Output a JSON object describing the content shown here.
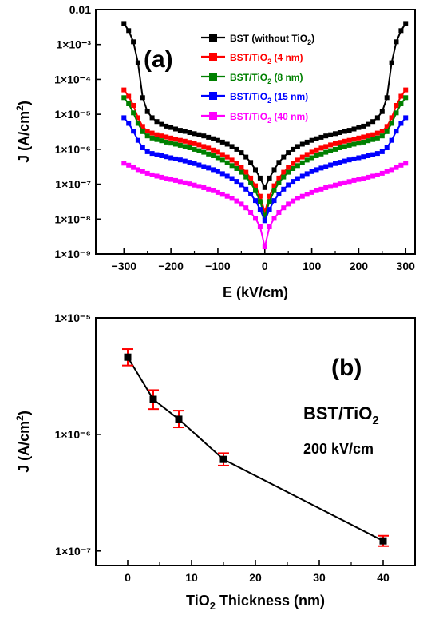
{
  "chart_data": [
    {
      "type": "line",
      "panel_label": "(a)",
      "ylog": true,
      "xlabel": "E (kV/cm)",
      "ylabel_main": "J (A/cm",
      "ylabel_sup": "2",
      "ylabel_tail": ")",
      "xlim": [
        -360,
        320
      ],
      "ylim": [
        1e-09,
        0.01
      ],
      "xticks": [
        -300,
        -200,
        -100,
        0,
        100,
        200,
        300
      ],
      "xtick_labels": [
        "−300",
        "−200",
        "−100",
        "0",
        "100",
        "200",
        "300"
      ],
      "yticks": [
        1e-09,
        1e-08,
        1e-07,
        1e-06,
        1e-05,
        0.0001,
        0.001,
        0.01
      ],
      "ytick_labels": [
        "1×10⁻⁹",
        "1×10⁻⁸",
        "1×10⁻⁷",
        "1×10⁻⁶",
        "1×10⁻⁵",
        "1×10⁻⁴",
        "1×10⁻³",
        "0.01"
      ],
      "legend_position": "top-right",
      "series": [
        {
          "name": "BST (without TiO₂)",
          "name_main": "BST (without TiO",
          "name_sub": "2",
          "name_tail": ")",
          "color": "#000000",
          "x": [
            -300,
            -290,
            -280,
            -270,
            -260,
            -250,
            -240,
            -230,
            -220,
            -210,
            -200,
            -190,
            -180,
            -170,
            -160,
            -150,
            -140,
            -130,
            -120,
            -110,
            -100,
            -90,
            -80,
            -70,
            -60,
            -50,
            -40,
            -30,
            -20,
            -10,
            0,
            10,
            20,
            30,
            40,
            50,
            60,
            70,
            80,
            90,
            100,
            110,
            120,
            130,
            140,
            150,
            160,
            170,
            180,
            190,
            200,
            210,
            220,
            230,
            240,
            250,
            260,
            270,
            280,
            290,
            300
          ],
          "y": [
            0.004,
            0.0025,
            0.0012,
            0.0003,
            3e-05,
            1.2e-05,
            8e-06,
            6.2e-06,
            5.2e-06,
            4.6e-06,
            4.2e-06,
            3.8e-06,
            3.5e-06,
            3.25e-06,
            3e-06,
            2.8e-06,
            2.6e-06,
            2.4e-06,
            2.2e-06,
            2e-06,
            1.8e-06,
            1.6e-06,
            1.4e-06,
            1.2e-06,
            1e-06,
            8e-07,
            6e-07,
            4.2e-07,
            2.6e-07,
            1.5e-07,
            8e-08,
            1.5e-07,
            2.6e-07,
            4.2e-07,
            6e-07,
            8e-07,
            1e-06,
            1.2e-06,
            1.4e-06,
            1.6e-06,
            1.8e-06,
            2e-06,
            2.2e-06,
            2.4e-06,
            2.6e-06,
            2.8e-06,
            3e-06,
            3.25e-06,
            3.5e-06,
            3.8e-06,
            4.2e-06,
            4.6e-06,
            5.2e-06,
            6.2e-06,
            8e-06,
            1.2e-05,
            3e-05,
            0.0003,
            0.0012,
            0.0025,
            0.004
          ]
        },
        {
          "name": "BST/TiO₂ (4 nm)",
          "name_main": "BST/TiO",
          "name_sub": "2",
          "name_tail": " (4 nm)",
          "color": "#ff0000",
          "x": [
            -300,
            -290,
            -280,
            -270,
            -260,
            -250,
            -240,
            -230,
            -220,
            -210,
            -200,
            -190,
            -180,
            -170,
            -160,
            -150,
            -140,
            -130,
            -120,
            -110,
            -100,
            -90,
            -80,
            -70,
            -60,
            -50,
            -40,
            -30,
            -20,
            -10,
            0,
            10,
            20,
            30,
            40,
            50,
            60,
            70,
            80,
            90,
            100,
            110,
            120,
            130,
            140,
            150,
            160,
            170,
            180,
            190,
            200,
            210,
            220,
            230,
            240,
            250,
            260,
            270,
            280,
            290,
            300
          ],
          "y": [
            5e-05,
            3.3e-05,
            1.8e-05,
            8e-06,
            4.5e-06,
            3.3e-06,
            2.9e-06,
            2.6e-06,
            2.4e-06,
            2.25e-06,
            2.1e-06,
            1.95e-06,
            1.8e-06,
            1.7e-06,
            1.58e-06,
            1.45e-06,
            1.33e-06,
            1.2e-06,
            1.08e-06,
            9.5e-07,
            8.3e-07,
            7.1e-07,
            6e-07,
            4.9e-07,
            3.9e-07,
            3e-07,
            2.2e-07,
            1.5e-07,
            9e-08,
            4.5e-08,
            1.6e-08,
            4.5e-08,
            9e-08,
            1.5e-07,
            2.2e-07,
            3e-07,
            3.9e-07,
            4.9e-07,
            6e-07,
            7.1e-07,
            8.3e-07,
            9.5e-07,
            1.08e-06,
            1.2e-06,
            1.33e-06,
            1.45e-06,
            1.58e-06,
            1.7e-06,
            1.8e-06,
            1.95e-06,
            2.1e-06,
            2.25e-06,
            2.4e-06,
            2.6e-06,
            2.9e-06,
            3.3e-06,
            4.5e-06,
            8e-06,
            1.8e-05,
            3.3e-05,
            5e-05
          ]
        },
        {
          "name": "BST/TiO₂ (8 nm)",
          "name_main": "BST/TiO",
          "name_sub": "2",
          "name_tail": " (8 nm)",
          "color": "#008000",
          "x": [
            -300,
            -290,
            -280,
            -270,
            -260,
            -250,
            -240,
            -230,
            -220,
            -210,
            -200,
            -190,
            -180,
            -170,
            -160,
            -150,
            -140,
            -130,
            -120,
            -110,
            -100,
            -90,
            -80,
            -70,
            -60,
            -50,
            -40,
            -30,
            -20,
            -10,
            0,
            10,
            20,
            30,
            40,
            50,
            60,
            70,
            80,
            90,
            100,
            110,
            120,
            130,
            140,
            150,
            160,
            170,
            180,
            190,
            200,
            210,
            220,
            230,
            240,
            250,
            260,
            270,
            280,
            290,
            300
          ],
          "y": [
            3e-05,
            2e-05,
            1.1e-05,
            5.5e-06,
            3.2e-06,
            2.4e-06,
            2.1e-06,
            1.9e-06,
            1.75e-06,
            1.6e-06,
            1.5e-06,
            1.4e-06,
            1.3e-06,
            1.2e-06,
            1.1e-06,
            1e-06,
            9.1e-07,
            8.2e-07,
            7.3e-07,
            6.5e-07,
            5.7e-07,
            4.9e-07,
            4.1e-07,
            3.4e-07,
            2.8e-07,
            2.2e-07,
            1.6e-07,
            1.1e-07,
            6.5e-08,
            3.2e-08,
            1.2e-08,
            3.2e-08,
            6.5e-08,
            1.1e-07,
            1.6e-07,
            2.2e-07,
            2.8e-07,
            3.4e-07,
            4.1e-07,
            4.9e-07,
            5.7e-07,
            6.5e-07,
            7.3e-07,
            8.2e-07,
            9.1e-07,
            1e-06,
            1.1e-06,
            1.2e-06,
            1.3e-06,
            1.4e-06,
            1.5e-06,
            1.6e-06,
            1.75e-06,
            1.9e-06,
            2.1e-06,
            2.4e-06,
            3.2e-06,
            5.5e-06,
            1.1e-05,
            2e-05,
            3e-05
          ]
        },
        {
          "name": "BST/TiO₂ (15 nm)",
          "name_main": "BST/TiO",
          "name_sub": "2",
          "name_tail": " (15 nm)",
          "color": "#0000ff",
          "x": [
            -300,
            -290,
            -280,
            -270,
            -260,
            -250,
            -240,
            -230,
            -220,
            -210,
            -200,
            -190,
            -180,
            -170,
            -160,
            -150,
            -140,
            -130,
            -120,
            -110,
            -100,
            -90,
            -80,
            -70,
            -60,
            -50,
            -40,
            -30,
            -20,
            -10,
            0,
            10,
            20,
            30,
            40,
            50,
            60,
            70,
            80,
            90,
            100,
            110,
            120,
            130,
            140,
            150,
            160,
            170,
            180,
            190,
            200,
            210,
            220,
            230,
            240,
            250,
            260,
            270,
            280,
            290,
            300
          ],
          "y": [
            8e-06,
            5.5e-06,
            3.3e-06,
            1.8e-06,
            1.1e-06,
            8.5e-07,
            7.6e-07,
            7e-07,
            6.5e-07,
            6.1e-07,
            5.7e-07,
            5.3e-07,
            4.95e-07,
            4.6e-07,
            4.25e-07,
            3.9e-07,
            3.55e-07,
            3.2e-07,
            2.9e-07,
            2.6e-07,
            2.3e-07,
            2e-07,
            1.7e-07,
            1.45e-07,
            1.2e-07,
            9.5e-08,
            7.2e-08,
            5.2e-08,
            3.4e-08,
            1.9e-08,
            9e-09,
            1.9e-08,
            3.4e-08,
            5.2e-08,
            7.2e-08,
            9.5e-08,
            1.2e-07,
            1.45e-07,
            1.7e-07,
            2e-07,
            2.3e-07,
            2.6e-07,
            2.9e-07,
            3.2e-07,
            3.55e-07,
            3.9e-07,
            4.25e-07,
            4.6e-07,
            4.95e-07,
            5.3e-07,
            5.7e-07,
            6.1e-07,
            6.5e-07,
            7e-07,
            7.6e-07,
            8.5e-07,
            1.1e-06,
            1.8e-06,
            3.3e-06,
            5.5e-06,
            8e-06
          ]
        },
        {
          "name": "BST/TiO₂ (40 nm)",
          "name_main": "BST/TiO",
          "name_sub": "2",
          "name_tail": " (40 nm)",
          "color": "#ff00ff",
          "x": [
            -300,
            -290,
            -280,
            -270,
            -260,
            -250,
            -240,
            -230,
            -220,
            -210,
            -200,
            -190,
            -180,
            -170,
            -160,
            -150,
            -140,
            -130,
            -120,
            -110,
            -100,
            -90,
            -80,
            -70,
            -60,
            -50,
            -40,
            -30,
            -20,
            -10,
            0,
            10,
            20,
            30,
            40,
            50,
            60,
            70,
            80,
            90,
            100,
            110,
            120,
            130,
            140,
            150,
            160,
            170,
            180,
            190,
            200,
            210,
            220,
            230,
            240,
            250,
            260,
            270,
            280,
            290,
            300
          ],
          "y": [
            4e-07,
            3.5e-07,
            3e-07,
            2.6e-07,
            2.3e-07,
            2.05e-07,
            1.85e-07,
            1.7e-07,
            1.58e-07,
            1.47e-07,
            1.37e-07,
            1.28e-07,
            1.19e-07,
            1.1e-07,
            1.02e-07,
            9.4e-08,
            8.6e-08,
            7.9e-08,
            7.2e-08,
            6.5e-08,
            5.8e-08,
            5.1e-08,
            4.5e-08,
            3.9e-08,
            3.3e-08,
            2.7e-08,
            2.1e-08,
            1.55e-08,
            1.05e-08,
            6e-09,
            1.6e-09,
            6e-09,
            1.05e-08,
            1.55e-08,
            2.1e-08,
            2.7e-08,
            3.3e-08,
            3.9e-08,
            4.5e-08,
            5.1e-08,
            5.8e-08,
            6.5e-08,
            7.2e-08,
            7.9e-08,
            8.6e-08,
            9.4e-08,
            1.02e-07,
            1.1e-07,
            1.19e-07,
            1.28e-07,
            1.37e-07,
            1.47e-07,
            1.58e-07,
            1.7e-07,
            1.85e-07,
            2.05e-07,
            2.3e-07,
            2.6e-07,
            3e-07,
            3.5e-07,
            4e-07
          ]
        }
      ]
    },
    {
      "type": "line",
      "panel_label": "(b)",
      "ylog": true,
      "xlabel_main": "TiO",
      "xlabel_sub": "2",
      "xlabel_tail": " Thickness (nm)",
      "ylabel_main": "J (A/cm",
      "ylabel_sup": "2",
      "ylabel_tail": ")",
      "xlim": [
        -5,
        45
      ],
      "ylim": [
        7.5e-08,
        1e-05
      ],
      "xticks": [
        0,
        10,
        20,
        30,
        40
      ],
      "xtick_labels": [
        "0",
        "10",
        "20",
        "30",
        "40"
      ],
      "yticks": [
        1e-07,
        1e-06,
        1e-05
      ],
      "ytick_labels": [
        "1×10⁻⁷",
        "1×10⁻⁶",
        "1×10⁻⁵"
      ],
      "annotation_material_main": "BST/TiO",
      "annotation_material_sub": "2",
      "annotation_field": "200 kV/cm",
      "series": [
        {
          "color": "#000000",
          "error_color": "#ff0000",
          "x": [
            0,
            4,
            8,
            15,
            40
          ],
          "y": [
            4.6e-06,
            2e-06,
            1.35e-06,
            6.1e-07,
            1.22e-07
          ],
          "y_low": [
            3.9e-06,
            1.65e-06,
            1.15e-06,
            5.4e-07,
            1.1e-07
          ],
          "y_high": [
            5.4e-06,
            2.4e-06,
            1.6e-06,
            6.9e-07,
            1.35e-07
          ]
        }
      ]
    }
  ]
}
